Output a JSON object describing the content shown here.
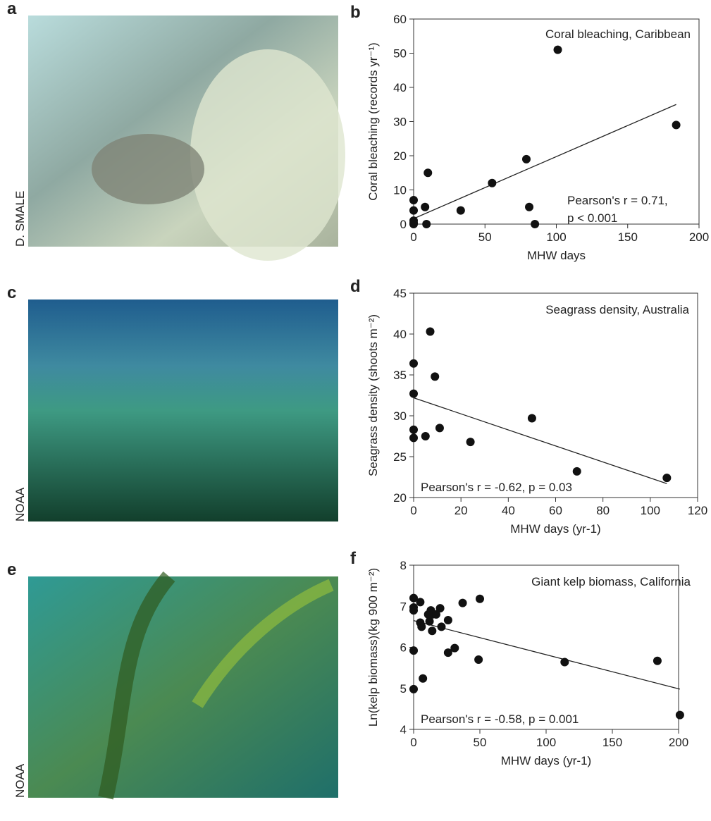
{
  "photos": [
    {
      "label": "a",
      "credit": "D. SMALE"
    },
    {
      "label": "c",
      "credit": "NOAA"
    },
    {
      "label": "e",
      "credit": "NOAA"
    }
  ],
  "chart_data": [
    {
      "type": "scatter",
      "label": "b",
      "xlabel": "MHW days",
      "ylabel": "Coral bleaching (records yr⁻¹)",
      "annotations": [
        "Coral bleaching, Caribbean",
        "Pearson's r  = 0.71,",
        "p < 0.001"
      ],
      "color": "#111111",
      "x": [
        0,
        0,
        0,
        0,
        0,
        8,
        10,
        9,
        33,
        55,
        79,
        81,
        85,
        101,
        184
      ],
      "y": [
        1,
        7,
        4,
        0,
        0.3,
        5,
        15,
        0,
        4,
        12,
        19,
        5,
        0,
        51,
        29
      ],
      "trendline": {
        "x": [
          0,
          184
        ],
        "y": [
          1.6,
          35
        ]
      },
      "xlim": [
        0,
        200
      ],
      "xticks": [
        0,
        50,
        100,
        150,
        200
      ],
      "ylim": [
        0,
        60
      ],
      "yticks": [
        0,
        10,
        20,
        30,
        40,
        50,
        60
      ]
    },
    {
      "type": "scatter",
      "label": "d",
      "xlabel": "MHW days (yr-1)",
      "ylabel": "Seagrass density (shoots m⁻²)",
      "annotations": [
        "Seagrass density, Australia",
        "Pearson's r  = -0.62, p = 0.03"
      ],
      "color": "#111111",
      "x": [
        0,
        0,
        0,
        0,
        7,
        9,
        5,
        11,
        24,
        50,
        69,
        107
      ],
      "y": [
        36.4,
        32.7,
        28.3,
        27.3,
        40.3,
        34.8,
        27.5,
        28.5,
        26.8,
        29.7,
        23.2,
        22.4
      ],
      "trendline": {
        "x": [
          0,
          107
        ],
        "y": [
          32.2,
          21.7
        ]
      },
      "xlim": [
        0,
        120
      ],
      "xticks": [
        0,
        20,
        40,
        60,
        80,
        100,
        120
      ],
      "ylim": [
        20,
        45
      ],
      "yticks": [
        20,
        25,
        30,
        35,
        40,
        45
      ]
    },
    {
      "type": "scatter",
      "label": "f",
      "xlabel": "MHW days (yr-1)",
      "ylabel": "Ln(kelp biomass)(kg 900 m⁻²)",
      "annotations": [
        "Giant kelp biomass, California",
        "Pearson's r  = -0.58, p = 0.001"
      ],
      "color": "#111111",
      "x": [
        0,
        0,
        0,
        0,
        0,
        5,
        5,
        6,
        7,
        11,
        13,
        14,
        12,
        14,
        17,
        20,
        21,
        26,
        26,
        31,
        37,
        50,
        49,
        114,
        184,
        201
      ],
      "y": [
        7.2,
        6.97,
        6.9,
        5.92,
        4.98,
        7.1,
        6.6,
        6.5,
        5.24,
        6.8,
        6.9,
        6.8,
        6.63,
        6.4,
        6.8,
        6.95,
        6.5,
        6.66,
        5.87,
        5.98,
        7.08,
        7.18,
        5.7,
        5.64,
        5.67,
        4.35
      ],
      "trendline": {
        "x": [
          0,
          201
        ],
        "y": [
          6.65,
          4.98
        ]
      },
      "xlim": [
        0,
        200
      ],
      "xticks": [
        0,
        50,
        100,
        150,
        200
      ],
      "ylim": [
        4,
        8
      ],
      "yticks": [
        4,
        5,
        6,
        7,
        8
      ]
    }
  ]
}
